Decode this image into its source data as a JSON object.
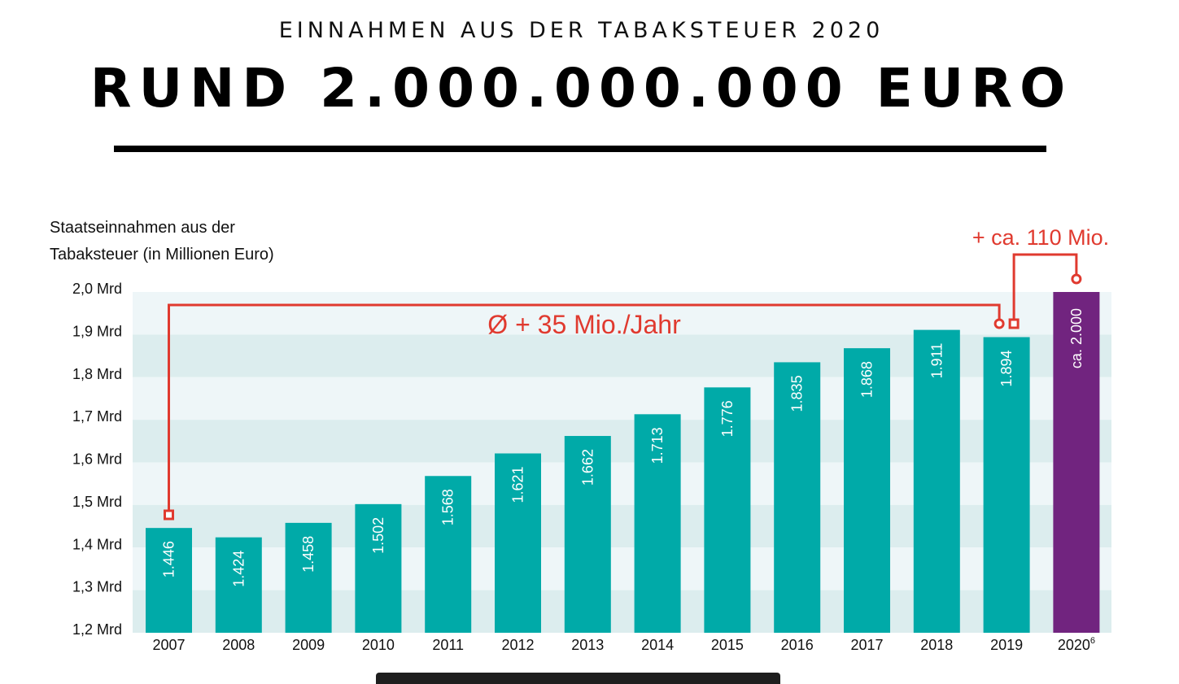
{
  "header": {
    "supertitle": "EINNAHMEN AUS DER TABAKSTEUER 2020",
    "headline": "RUND 2.000.000.000 EURO"
  },
  "chart_data": {
    "type": "bar",
    "title": "Staatseinnahmen aus der Tabaksteuer (in Millionen Euro)",
    "ylabel_lines": [
      "Staatseinnahmen aus der",
      "Tabaksteuer (in Millionen Euro)"
    ],
    "xlabel": "",
    "categories": [
      "2007",
      "2008",
      "2009",
      "2010",
      "2011",
      "2012",
      "2013",
      "2014",
      "2015",
      "2016",
      "2017",
      "2018",
      "2019",
      "2020"
    ],
    "category_superscripts": {
      "2020": "6"
    },
    "values": [
      1446,
      1424,
      1458,
      1502,
      1568,
      1621,
      1662,
      1713,
      1776,
      1835,
      1868,
      1911,
      1894,
      2000
    ],
    "value_labels": [
      "1.446",
      "1.424",
      "1.458",
      "1.502",
      "1.568",
      "1.621",
      "1.662",
      "1.713",
      "1.776",
      "1.835",
      "1.868",
      "1.911",
      "1.894",
      "ca. 2.000"
    ],
    "highlight_index": 13,
    "ylim": [
      1200,
      2000
    ],
    "yticks": [
      2000,
      1900,
      1800,
      1700,
      1600,
      1500,
      1400,
      1300,
      1200
    ],
    "ytick_labels": [
      "2,0 Mrd",
      "1,9 Mrd",
      "1,8 Mrd",
      "1,7 Mrd",
      "1,6 Mrd",
      "1,5 Mrd",
      "1,4 Mrd",
      "1,3 Mrd",
      "1,2 Mrd"
    ],
    "grid": "alternating horizontal bands",
    "colors": {
      "bar": "#00aaa8",
      "highlight_bar": "#71247f",
      "annotation": "#e03a2f",
      "band_light": "#eef6f8",
      "band_dark": "#dcedee"
    },
    "annotations": [
      {
        "text": "Ø + 35 Mio./Jahr",
        "from": "2007",
        "to": "2019"
      },
      {
        "text": "+ ca. 110 Mio.",
        "from": "2019",
        "to": "2020"
      }
    ]
  }
}
